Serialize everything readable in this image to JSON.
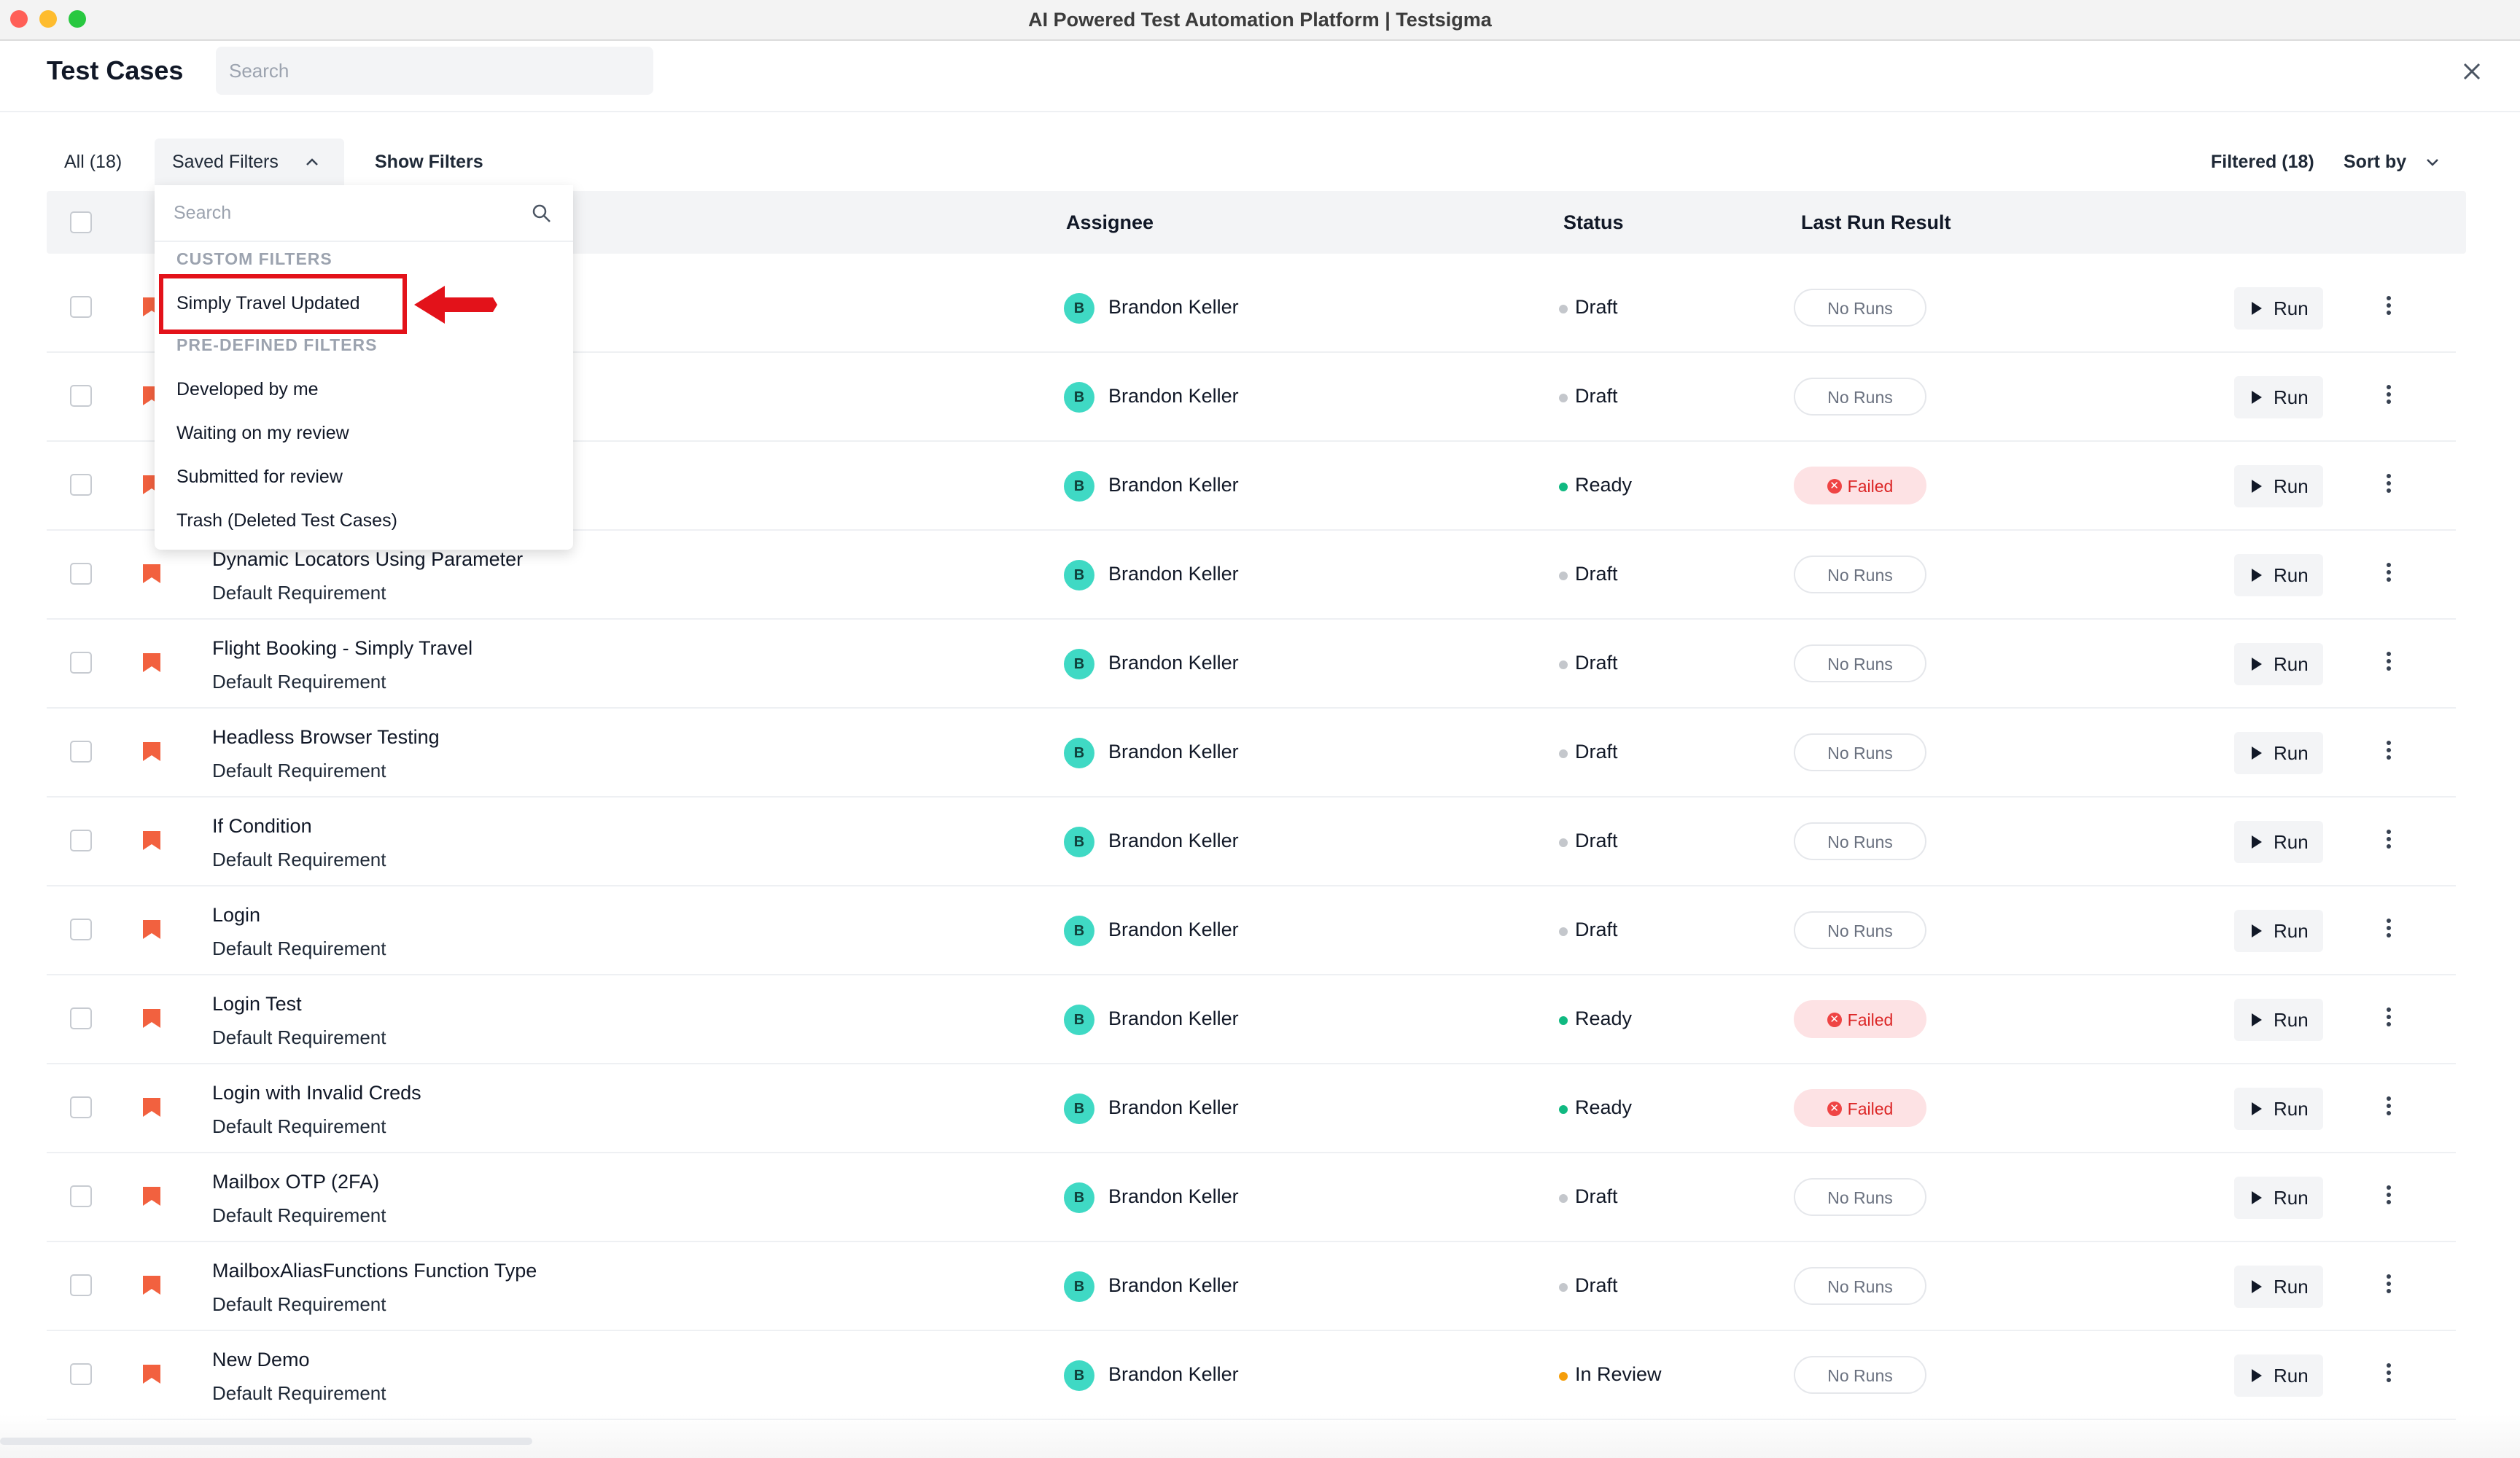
{
  "window": {
    "title": "AI Powered Test Automation Platform | Testsigma"
  },
  "header": {
    "title": "Test Cases",
    "search_placeholder": "Search"
  },
  "toolbar": {
    "all_label": "All (18)",
    "saved_filters_label": "Saved Filters",
    "show_filters_label": "Show Filters",
    "filtered_label": "Filtered (18)",
    "sort_label": "Sort by"
  },
  "table": {
    "columns": {
      "assignee": "Assignee",
      "status": "Status",
      "last_run": "Last Run Result"
    },
    "run_label": "Run",
    "rows": [
      {
        "name": "",
        "requirement": "",
        "assignee": "Brandon Keller",
        "avatar": "B",
        "status": "Draft",
        "result": "No Runs"
      },
      {
        "name": "",
        "requirement": "",
        "assignee": "Brandon Keller",
        "avatar": "B",
        "status": "Draft",
        "result": "No Runs"
      },
      {
        "name": "",
        "requirement": "",
        "assignee": "Brandon Keller",
        "avatar": "B",
        "status": "Ready",
        "result": "Failed"
      },
      {
        "name": "Dynamic Locators Using Parameter",
        "requirement": "Default Requirement",
        "assignee": "Brandon Keller",
        "avatar": "B",
        "status": "Draft",
        "result": "No Runs"
      },
      {
        "name": "Flight Booking - Simply Travel",
        "requirement": "Default Requirement",
        "assignee": "Brandon Keller",
        "avatar": "B",
        "status": "Draft",
        "result": "No Runs"
      },
      {
        "name": "Headless Browser Testing",
        "requirement": "Default Requirement",
        "assignee": "Brandon Keller",
        "avatar": "B",
        "status": "Draft",
        "result": "No Runs"
      },
      {
        "name": "If Condition",
        "requirement": "Default Requirement",
        "assignee": "Brandon Keller",
        "avatar": "B",
        "status": "Draft",
        "result": "No Runs"
      },
      {
        "name": "Login",
        "requirement": "Default Requirement",
        "assignee": "Brandon Keller",
        "avatar": "B",
        "status": "Draft",
        "result": "No Runs"
      },
      {
        "name": "Login Test",
        "requirement": "Default Requirement",
        "assignee": "Brandon Keller",
        "avatar": "B",
        "status": "Ready",
        "result": "Failed"
      },
      {
        "name": "Login with Invalid Creds",
        "requirement": "Default Requirement",
        "assignee": "Brandon Keller",
        "avatar": "B",
        "status": "Ready",
        "result": "Failed"
      },
      {
        "name": "Mailbox OTP (2FA)",
        "requirement": "Default Requirement",
        "assignee": "Brandon Keller",
        "avatar": "B",
        "status": "Draft",
        "result": "No Runs"
      },
      {
        "name": "MailboxAliasFunctions Function Type",
        "requirement": "Default Requirement",
        "assignee": "Brandon Keller",
        "avatar": "B",
        "status": "Draft",
        "result": "No Runs"
      },
      {
        "name": "New Demo",
        "requirement": "Default Requirement",
        "assignee": "Brandon Keller",
        "avatar": "B",
        "status": "In Review",
        "result": "No Runs"
      }
    ]
  },
  "dropdown": {
    "search_placeholder": "Search",
    "custom_section": "CUSTOM FILTERS",
    "custom_items": [
      "Simply Travel Updated"
    ],
    "predefined_section": "PRE-DEFINED FILTERS",
    "predefined_items": [
      "Developed by me",
      "Waiting on my review",
      "Submitted for review",
      "Trash (Deleted Test Cases)"
    ]
  },
  "colors": {
    "draft": "#c4c7cc",
    "ready": "#10b981",
    "in_review": "#f59e0b",
    "flag": "#f2613f",
    "annotation": "#e3121a",
    "avatar": "#3fd9c4"
  },
  "icons": {
    "search": "search-icon",
    "close": "close-icon",
    "flag": "flag-icon",
    "menu": "kebab-menu-icon",
    "play": "play-icon"
  }
}
